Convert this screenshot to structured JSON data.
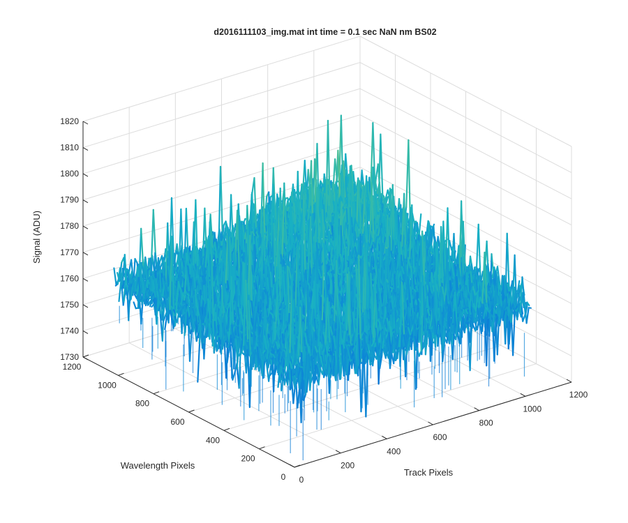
{
  "chart_data": {
    "type": "surface",
    "title": "d2016111103_img.mat int time = 0.1 sec  NaN nm BS02",
    "xlabel": "Track Pixels",
    "ylabel": "Wavelength Pixels",
    "zlabel": "Signal (ADU)",
    "xlim": [
      0,
      1200
    ],
    "ylim": [
      0,
      1200
    ],
    "zlim": [
      1730,
      1820
    ],
    "x_ticks": [
      "0",
      "200",
      "400",
      "600",
      "800",
      "1000",
      "1200"
    ],
    "y_ticks": [
      "0",
      "200",
      "400",
      "600",
      "800",
      "1000",
      "1200"
    ],
    "z_ticks": [
      "1730",
      "1740",
      "1750",
      "1760",
      "1770",
      "1780",
      "1790",
      "1800",
      "1810",
      "1820"
    ],
    "data_extent": {
      "x": [
        0,
        1024
      ],
      "y": [
        0,
        1024
      ]
    },
    "signal_mean": 1765,
    "signal_range": [
      1735,
      1812
    ],
    "grid": true,
    "colormap": "parula",
    "colors": {
      "low": "#0a72d8",
      "mid": "#19b0c6",
      "high": "#d7c63a"
    }
  }
}
